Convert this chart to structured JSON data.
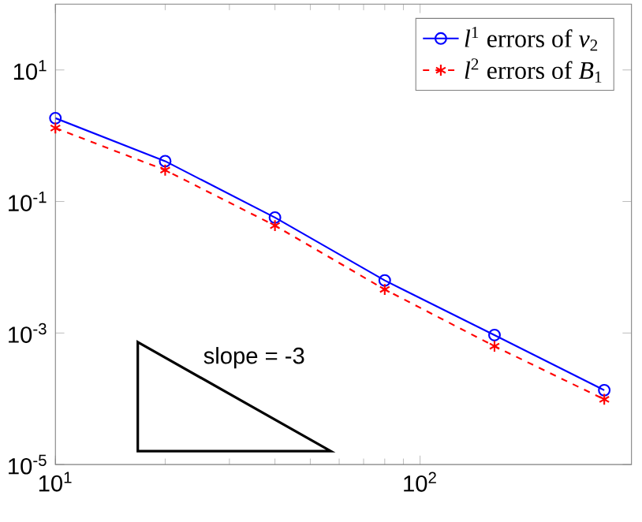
{
  "chart_data": {
    "type": "line",
    "log": "xy",
    "xlim": [
      10,
      380
    ],
    "ylim": [
      1e-05,
      100
    ],
    "xticks": [
      {
        "value": 10,
        "label": "10$^{1}$"
      },
      {
        "value": 100,
        "label": "10$^{2}$"
      }
    ],
    "yticks": [
      {
        "value": 1e-05,
        "label": "10$^{-5}$"
      },
      {
        "value": 0.001,
        "label": "10$^{-3}$"
      },
      {
        "value": 0.1,
        "label": "10$^{-1}$"
      },
      {
        "value": 10,
        "label": "10$^{1}$"
      }
    ],
    "legend": "top right",
    "grid": false,
    "x": [
      10,
      20,
      40,
      80,
      160,
      320
    ],
    "series": [
      {
        "name": "*l*$^{1}$ errors of *v*$_{2}$",
        "color": "#0000ff",
        "marker": "circle",
        "line_style": "solid",
        "values": [
          1.85,
          0.41,
          0.057,
          0.0063,
          0.00093,
          0.000135
        ]
      },
      {
        "name": "*l*$^{2}$ errors of *B*$_{1}$",
        "color": "#ff0000",
        "marker": "cross",
        "line_style": "dashed",
        "values": [
          1.31,
          0.3,
          0.043,
          0.0046,
          0.00063,
          9.8e-05
        ]
      }
    ],
    "annotations": [
      "slope = -3"
    ]
  }
}
